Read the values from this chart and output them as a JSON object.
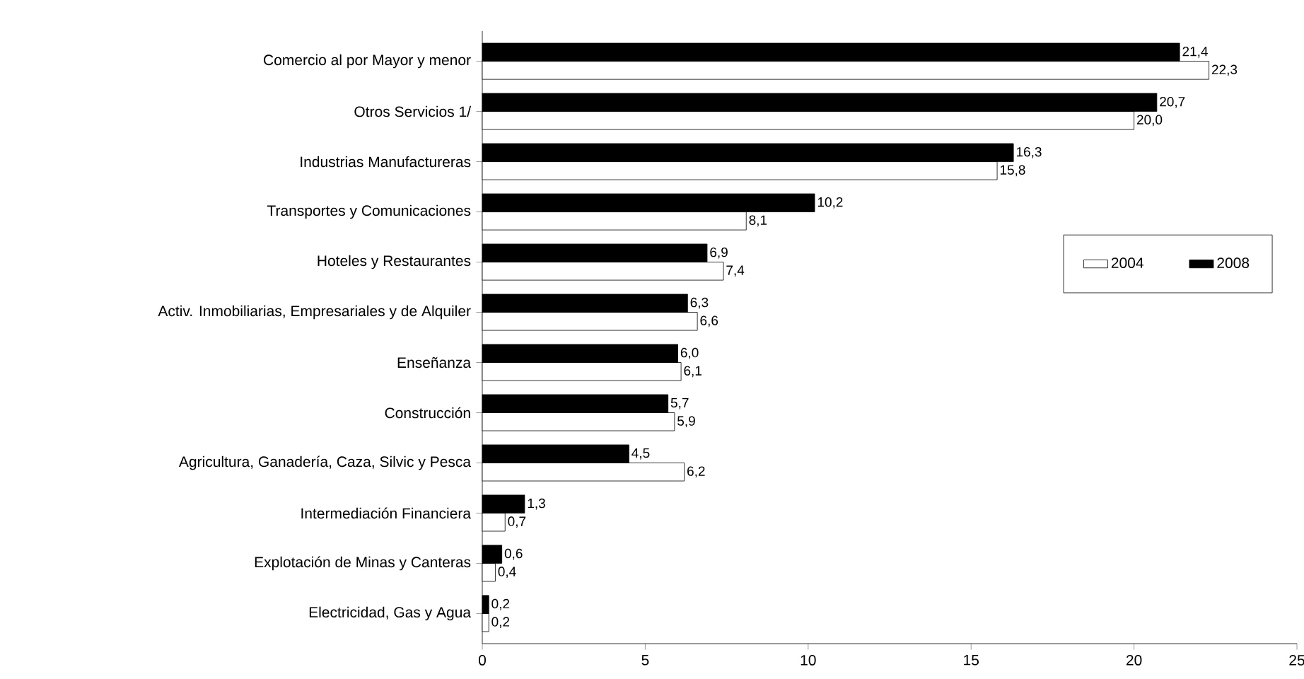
{
  "chart_data": {
    "type": "bar",
    "orientation": "horizontal",
    "categories": [
      "Comercio al por Mayor y menor",
      "Otros Servicios 1/",
      "Industrias Manufactureras",
      "Transportes y Comunicaciones",
      "Hoteles y Restaurantes",
      "Activ. Inmobiliarias, Empresariales y de Alquiler",
      "Enseñanza",
      "Construcción",
      "Agricultura, Ganadería, Caza, Silvic y Pesca",
      "Intermediación Financiera",
      "Explotación de Minas y Canteras",
      "Electricidad, Gas y Agua"
    ],
    "series": [
      {
        "name": "2004",
        "color": "#ffffff",
        "values": [
          22.3,
          20.0,
          15.8,
          8.1,
          7.4,
          6.6,
          6.1,
          5.9,
          6.2,
          0.7,
          0.4,
          0.2
        ],
        "value_labels": [
          "22,3",
          "20,0",
          "15,8",
          "8,1",
          "7,4",
          "6,6",
          "6,1",
          "5,9",
          "6,2",
          "0,7",
          "0,4",
          "0,2"
        ]
      },
      {
        "name": "2008",
        "color": "#000000",
        "values": [
          21.4,
          20.7,
          16.3,
          10.2,
          6.9,
          6.3,
          6.0,
          5.7,
          4.5,
          1.3,
          0.6,
          0.2
        ],
        "value_labels": [
          "21,4",
          "20,7",
          "16,3",
          "10,2",
          "6,9",
          "6,3",
          "6,0",
          "5,7",
          "4,5",
          "1,3",
          "0,6",
          "0,2"
        ]
      }
    ],
    "xlim": [
      0,
      25
    ],
    "xticks": [
      0,
      5,
      10,
      15,
      20,
      25
    ],
    "grid": false,
    "legend": "right"
  }
}
